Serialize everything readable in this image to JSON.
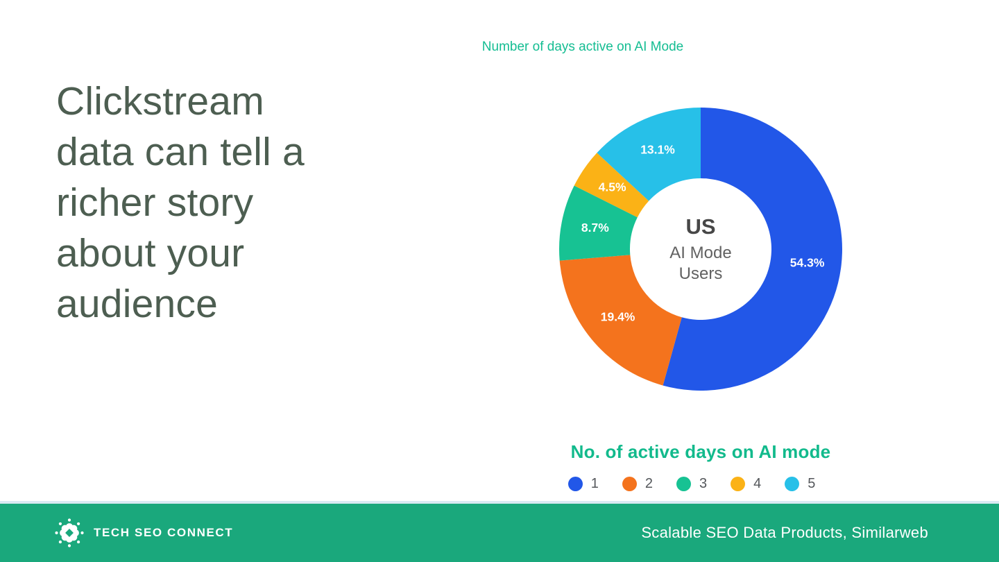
{
  "headline": {
    "text": "Clickstream\ndata can tell a\nricher story\nabout your\naudience"
  },
  "chart_data": {
    "type": "pie",
    "subtype": "donut",
    "title": "Number of days active on AI Mode",
    "categories": [
      "1",
      "2",
      "3",
      "4",
      "5"
    ],
    "values": [
      54.3,
      19.4,
      8.7,
      4.5,
      13.1
    ],
    "unit": "%",
    "colors": [
      "#2257e8",
      "#f4731d",
      "#17c293",
      "#fbb216",
      "#27c0e8"
    ],
    "start_angle_deg": 0,
    "direction": "clockwise",
    "center_label": [
      "US",
      "AI Mode",
      "Users"
    ],
    "legend_title": "No. of active days on AI mode",
    "legend_position": "bottom"
  },
  "footer": {
    "brand": "TECH SEO CONNECT",
    "credit": "Scalable SEO Data Products, Similarweb"
  },
  "colors": {
    "accent_teal": "#14bd92",
    "legend_title_teal": "#12ba8c",
    "headline_green": "#4d5e51",
    "footer_green": "#1aa87c",
    "center_label_dark": "#474747",
    "center_label_gray": "#616161",
    "legend_label_gray": "#54575b"
  }
}
